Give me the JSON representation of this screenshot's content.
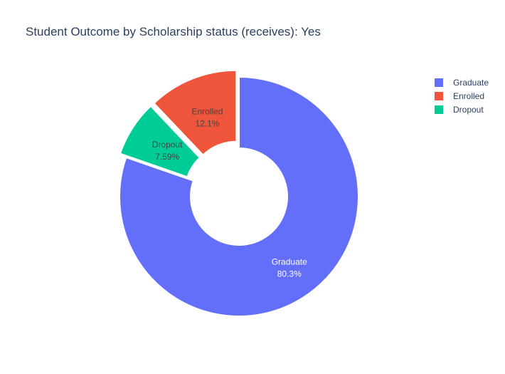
{
  "chart_data": {
    "type": "pie",
    "title": "Student Outcome by Scholarship status (receives): Yes",
    "hole": true,
    "legend_position": "top-right",
    "slices": [
      {
        "label": "Graduate",
        "percent_text": "80.3%",
        "value": 80.3,
        "color": "#636efa",
        "text_color": "#ffffff",
        "pulled": false
      },
      {
        "label": "Dropout",
        "percent_text": "7.59%",
        "value": 7.59,
        "color": "#00cc96",
        "text_color": "#444444",
        "pulled": true
      },
      {
        "label": "Enrolled",
        "percent_text": "12.1%",
        "value": 12.1,
        "color": "#ef553b",
        "text_color": "#444444",
        "pulled": true
      }
    ],
    "legend": [
      {
        "label": "Graduate",
        "color": "#636efa"
      },
      {
        "label": "Enrolled",
        "color": "#ef553b"
      },
      {
        "label": "Dropout",
        "color": "#00cc96"
      }
    ]
  }
}
